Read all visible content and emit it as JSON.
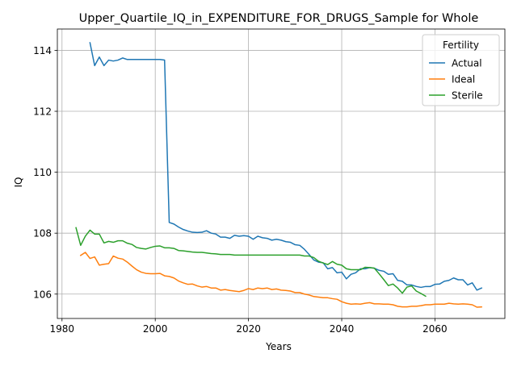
{
  "chart_data": {
    "type": "line",
    "title": "Upper_Quartile_IQ_in_EXPENDITURE_FOR_DRUGS_Sample for Whole",
    "xlabel": "Years",
    "ylabel": "IQ",
    "xlim": [
      1979,
      2075
    ],
    "ylim": [
      105.2,
      114.7
    ],
    "xticks": [
      1980,
      2000,
      2020,
      2040,
      2060
    ],
    "yticks": [
      106,
      108,
      110,
      112,
      114
    ],
    "grid": true,
    "legend": {
      "title": "Fertility",
      "placement": "top-right"
    },
    "series": [
      {
        "name": "Actual",
        "color": "#1f77b4",
        "x": [
          1986,
          1987,
          1988,
          1989,
          1990,
          1991,
          1992,
          1993,
          1994,
          1995,
          1996,
          1997,
          1998,
          1999,
          2000,
          2001,
          2002,
          2003,
          2004,
          2005,
          2006,
          2007,
          2008,
          2009,
          2010,
          2011,
          2012,
          2013,
          2014,
          2015,
          2016,
          2017,
          2018,
          2019,
          2020,
          2021,
          2022,
          2023,
          2024,
          2025,
          2026,
          2027,
          2028,
          2029,
          2030,
          2031,
          2032,
          2033,
          2034,
          2035,
          2036,
          2037,
          2038,
          2039,
          2040,
          2041,
          2042,
          2043,
          2044,
          2045,
          2046,
          2047,
          2048,
          2049,
          2050,
          2051,
          2052,
          2053,
          2054,
          2055,
          2056,
          2057,
          2058,
          2059,
          2060,
          2061,
          2062,
          2063,
          2064,
          2065,
          2066,
          2067,
          2068,
          2069,
          2070
        ],
        "y": [
          114.25,
          113.5,
          113.78,
          113.5,
          113.68,
          113.65,
          113.68,
          113.75,
          113.7,
          113.7,
          113.7,
          113.7,
          113.7,
          113.7,
          113.7,
          113.7,
          113.68,
          108.35,
          108.3,
          108.2,
          108.12,
          108.07,
          108.03,
          108.02,
          108.03,
          108.08,
          108.0,
          107.97,
          107.87,
          107.87,
          107.83,
          107.93,
          107.9,
          107.92,
          107.9,
          107.8,
          107.9,
          107.85,
          107.83,
          107.77,
          107.8,
          107.77,
          107.72,
          107.7,
          107.62,
          107.6,
          107.47,
          107.3,
          107.12,
          107.05,
          107.03,
          106.83,
          106.87,
          106.7,
          106.72,
          106.5,
          106.65,
          106.7,
          106.83,
          106.83,
          106.87,
          106.85,
          106.78,
          106.75,
          106.65,
          106.67,
          106.45,
          106.42,
          106.3,
          106.3,
          106.25,
          106.22,
          106.25,
          106.25,
          106.32,
          106.33,
          106.42,
          106.45,
          106.53,
          106.47,
          106.47,
          106.3,
          106.37,
          106.13,
          106.2
        ]
      },
      {
        "name": "Ideal",
        "color": "#ff7f0e",
        "x": [
          1984,
          1985,
          1986,
          1987,
          1988,
          1989,
          1990,
          1991,
          1992,
          1993,
          1994,
          1995,
          1996,
          1997,
          1998,
          1999,
          2000,
          2001,
          2002,
          2003,
          2004,
          2005,
          2006,
          2007,
          2008,
          2009,
          2010,
          2011,
          2012,
          2013,
          2014,
          2015,
          2016,
          2017,
          2018,
          2019,
          2020,
          2021,
          2022,
          2023,
          2024,
          2025,
          2026,
          2027,
          2028,
          2029,
          2030,
          2031,
          2032,
          2033,
          2034,
          2035,
          2036,
          2037,
          2038,
          2039,
          2040,
          2041,
          2042,
          2043,
          2044,
          2045,
          2046,
          2047,
          2048,
          2049,
          2050,
          2051,
          2052,
          2053,
          2054,
          2055,
          2056,
          2057,
          2058,
          2059,
          2060,
          2061,
          2062,
          2063,
          2064,
          2065,
          2066,
          2067,
          2068,
          2069,
          2070
        ],
        "y": [
          107.27,
          107.37,
          107.17,
          107.22,
          106.95,
          106.98,
          107.0,
          107.25,
          107.18,
          107.15,
          107.05,
          106.92,
          106.8,
          106.72,
          106.68,
          106.67,
          106.67,
          106.68,
          106.6,
          106.58,
          106.53,
          106.43,
          106.37,
          106.32,
          106.33,
          106.27,
          106.23,
          106.25,
          106.2,
          106.2,
          106.13,
          106.15,
          106.12,
          106.1,
          106.08,
          106.12,
          106.18,
          106.15,
          106.2,
          106.18,
          106.2,
          106.15,
          106.17,
          106.13,
          106.12,
          106.1,
          106.05,
          106.05,
          106.0,
          105.97,
          105.92,
          105.9,
          105.88,
          105.88,
          105.85,
          105.83,
          105.75,
          105.7,
          105.67,
          105.68,
          105.67,
          105.7,
          105.72,
          105.68,
          105.68,
          105.67,
          105.67,
          105.65,
          105.6,
          105.58,
          105.58,
          105.6,
          105.6,
          105.62,
          105.65,
          105.65,
          105.67,
          105.67,
          105.67,
          105.7,
          105.68,
          105.67,
          105.68,
          105.67,
          105.65,
          105.57,
          105.58
        ]
      },
      {
        "name": "Sterile",
        "color": "#2ca02c",
        "x": [
          1983,
          1984,
          1985,
          1986,
          1987,
          1988,
          1989,
          1990,
          1991,
          1992,
          1993,
          1994,
          1995,
          1996,
          1997,
          1998,
          1999,
          2000,
          2001,
          2002,
          2003,
          2004,
          2005,
          2006,
          2007,
          2008,
          2009,
          2010,
          2011,
          2012,
          2013,
          2014,
          2015,
          2016,
          2017,
          2018,
          2019,
          2020,
          2021,
          2022,
          2023,
          2024,
          2025,
          2026,
          2027,
          2028,
          2029,
          2030,
          2031,
          2032,
          2033,
          2034,
          2035,
          2036,
          2037,
          2038,
          2039,
          2040,
          2041,
          2042,
          2043,
          2044,
          2045,
          2046,
          2047,
          2048,
          2049,
          2050,
          2051,
          2052,
          2053,
          2054,
          2055,
          2056,
          2057,
          2058
        ],
        "y": [
          108.18,
          107.6,
          107.9,
          108.1,
          107.97,
          107.97,
          107.68,
          107.73,
          107.7,
          107.75,
          107.75,
          107.67,
          107.63,
          107.53,
          107.5,
          107.48,
          107.53,
          107.57,
          107.58,
          107.52,
          107.52,
          107.5,
          107.43,
          107.42,
          107.4,
          107.38,
          107.37,
          107.37,
          107.35,
          107.33,
          107.32,
          107.3,
          107.3,
          107.3,
          107.28,
          107.28,
          107.28,
          107.28,
          107.28,
          107.28,
          107.28,
          107.28,
          107.28,
          107.28,
          107.28,
          107.28,
          107.28,
          107.28,
          107.28,
          107.25,
          107.25,
          107.2,
          107.08,
          107.02,
          106.97,
          107.07,
          106.98,
          106.95,
          106.83,
          106.8,
          106.8,
          106.8,
          106.88,
          106.87,
          106.85,
          106.67,
          106.48,
          106.28,
          106.33,
          106.2,
          106.03,
          106.23,
          106.27,
          106.1,
          106.02,
          105.93
        ]
      }
    ]
  }
}
